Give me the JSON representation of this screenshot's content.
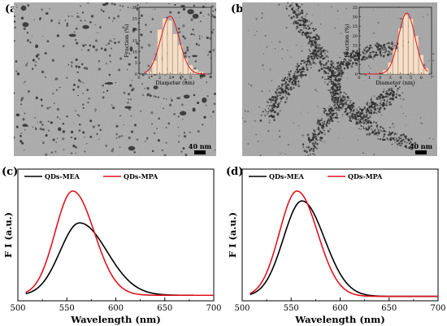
{
  "panels": {
    "a": {
      "label": "(a)",
      "scale_bar": "40 nm"
    },
    "b": {
      "label": "(b)",
      "scale_bar": "40 nm"
    },
    "c": {
      "label": "(c)"
    },
    "d": {
      "label": "(d)"
    }
  },
  "colors": {
    "mea": "#000000",
    "mpa": "#e0141e",
    "bar": "#f6dfc6",
    "tem_bg": "#a7a7a7"
  },
  "chart_data": [
    {
      "type": "bar",
      "panel": "a-inset",
      "categories": [
        1,
        1.5,
        2,
        2.5,
        3,
        3.5,
        4,
        4.5,
        5,
        5.5,
        6
      ],
      "values": [
        1,
        6,
        20,
        25,
        24,
        18,
        13,
        7,
        4,
        2,
        1
      ],
      "fit_curve": {
        "type": "gaussian",
        "mean": 3.0,
        "sigma": 0.9,
        "peak": 26
      },
      "xlabel": "Diameter (nm)",
      "ylabel": "Fraction (%)",
      "xlim": [
        0,
        7
      ],
      "ylim": [
        0,
        30
      ],
      "xticks": [
        0,
        1,
        2,
        3,
        4,
        5,
        6,
        7
      ],
      "yticks": [
        0,
        5,
        10,
        15,
        20,
        25,
        30
      ]
    },
    {
      "type": "bar",
      "panel": "b-inset",
      "categories": [
        2.5,
        3,
        3.5,
        4,
        4.5,
        5,
        5.5,
        6,
        6.5
      ],
      "values": [
        2,
        6,
        13,
        24,
        31,
        29,
        20,
        10,
        3
      ],
      "fit_curve": {
        "type": "gaussian",
        "mean": 4.6,
        "sigma": 0.8,
        "peak": 32
      },
      "xlabel": "Diameter (nm)",
      "ylabel": "Fraction (%)",
      "xlim": [
        0,
        7
      ],
      "ylim": [
        0,
        35
      ],
      "xticks": [
        0,
        1,
        2,
        3,
        4,
        5,
        6,
        7
      ],
      "yticks": [
        0,
        5,
        10,
        15,
        20,
        25,
        30,
        35
      ]
    },
    {
      "type": "line",
      "panel": "c",
      "xlabel": "Wavelength (nm)",
      "ylabel": "F I (a.u.)",
      "xlim": [
        500,
        700
      ],
      "ylim": [
        0,
        1.2
      ],
      "xticks": [
        500,
        550,
        600,
        650,
        700
      ],
      "series": [
        {
          "name": "QDs-MEA",
          "peak_x": 563,
          "peak_y": 0.71,
          "sigma_left": 20,
          "sigma_right": 28,
          "baseline": 0.05
        },
        {
          "name": "QDs-MPA",
          "peak_x": 556,
          "peak_y": 1.0,
          "sigma_left": 18,
          "sigma_right": 22,
          "baseline": 0.05
        }
      ]
    },
    {
      "type": "line",
      "panel": "d",
      "xlabel": "Wavelength (nm)",
      "ylabel": "F I (a.u.)",
      "xlim": [
        500,
        700
      ],
      "ylim": [
        0,
        1.2
      ],
      "xticks": [
        500,
        550,
        600,
        650,
        700
      ],
      "series": [
        {
          "name": "QDs-MEA",
          "peak_x": 561,
          "peak_y": 0.91,
          "sigma_left": 19,
          "sigma_right": 23,
          "baseline": 0.04
        },
        {
          "name": "QDs-MPA",
          "peak_x": 556,
          "peak_y": 1.0,
          "sigma_left": 18,
          "sigma_right": 21,
          "baseline": 0.04
        }
      ]
    }
  ]
}
